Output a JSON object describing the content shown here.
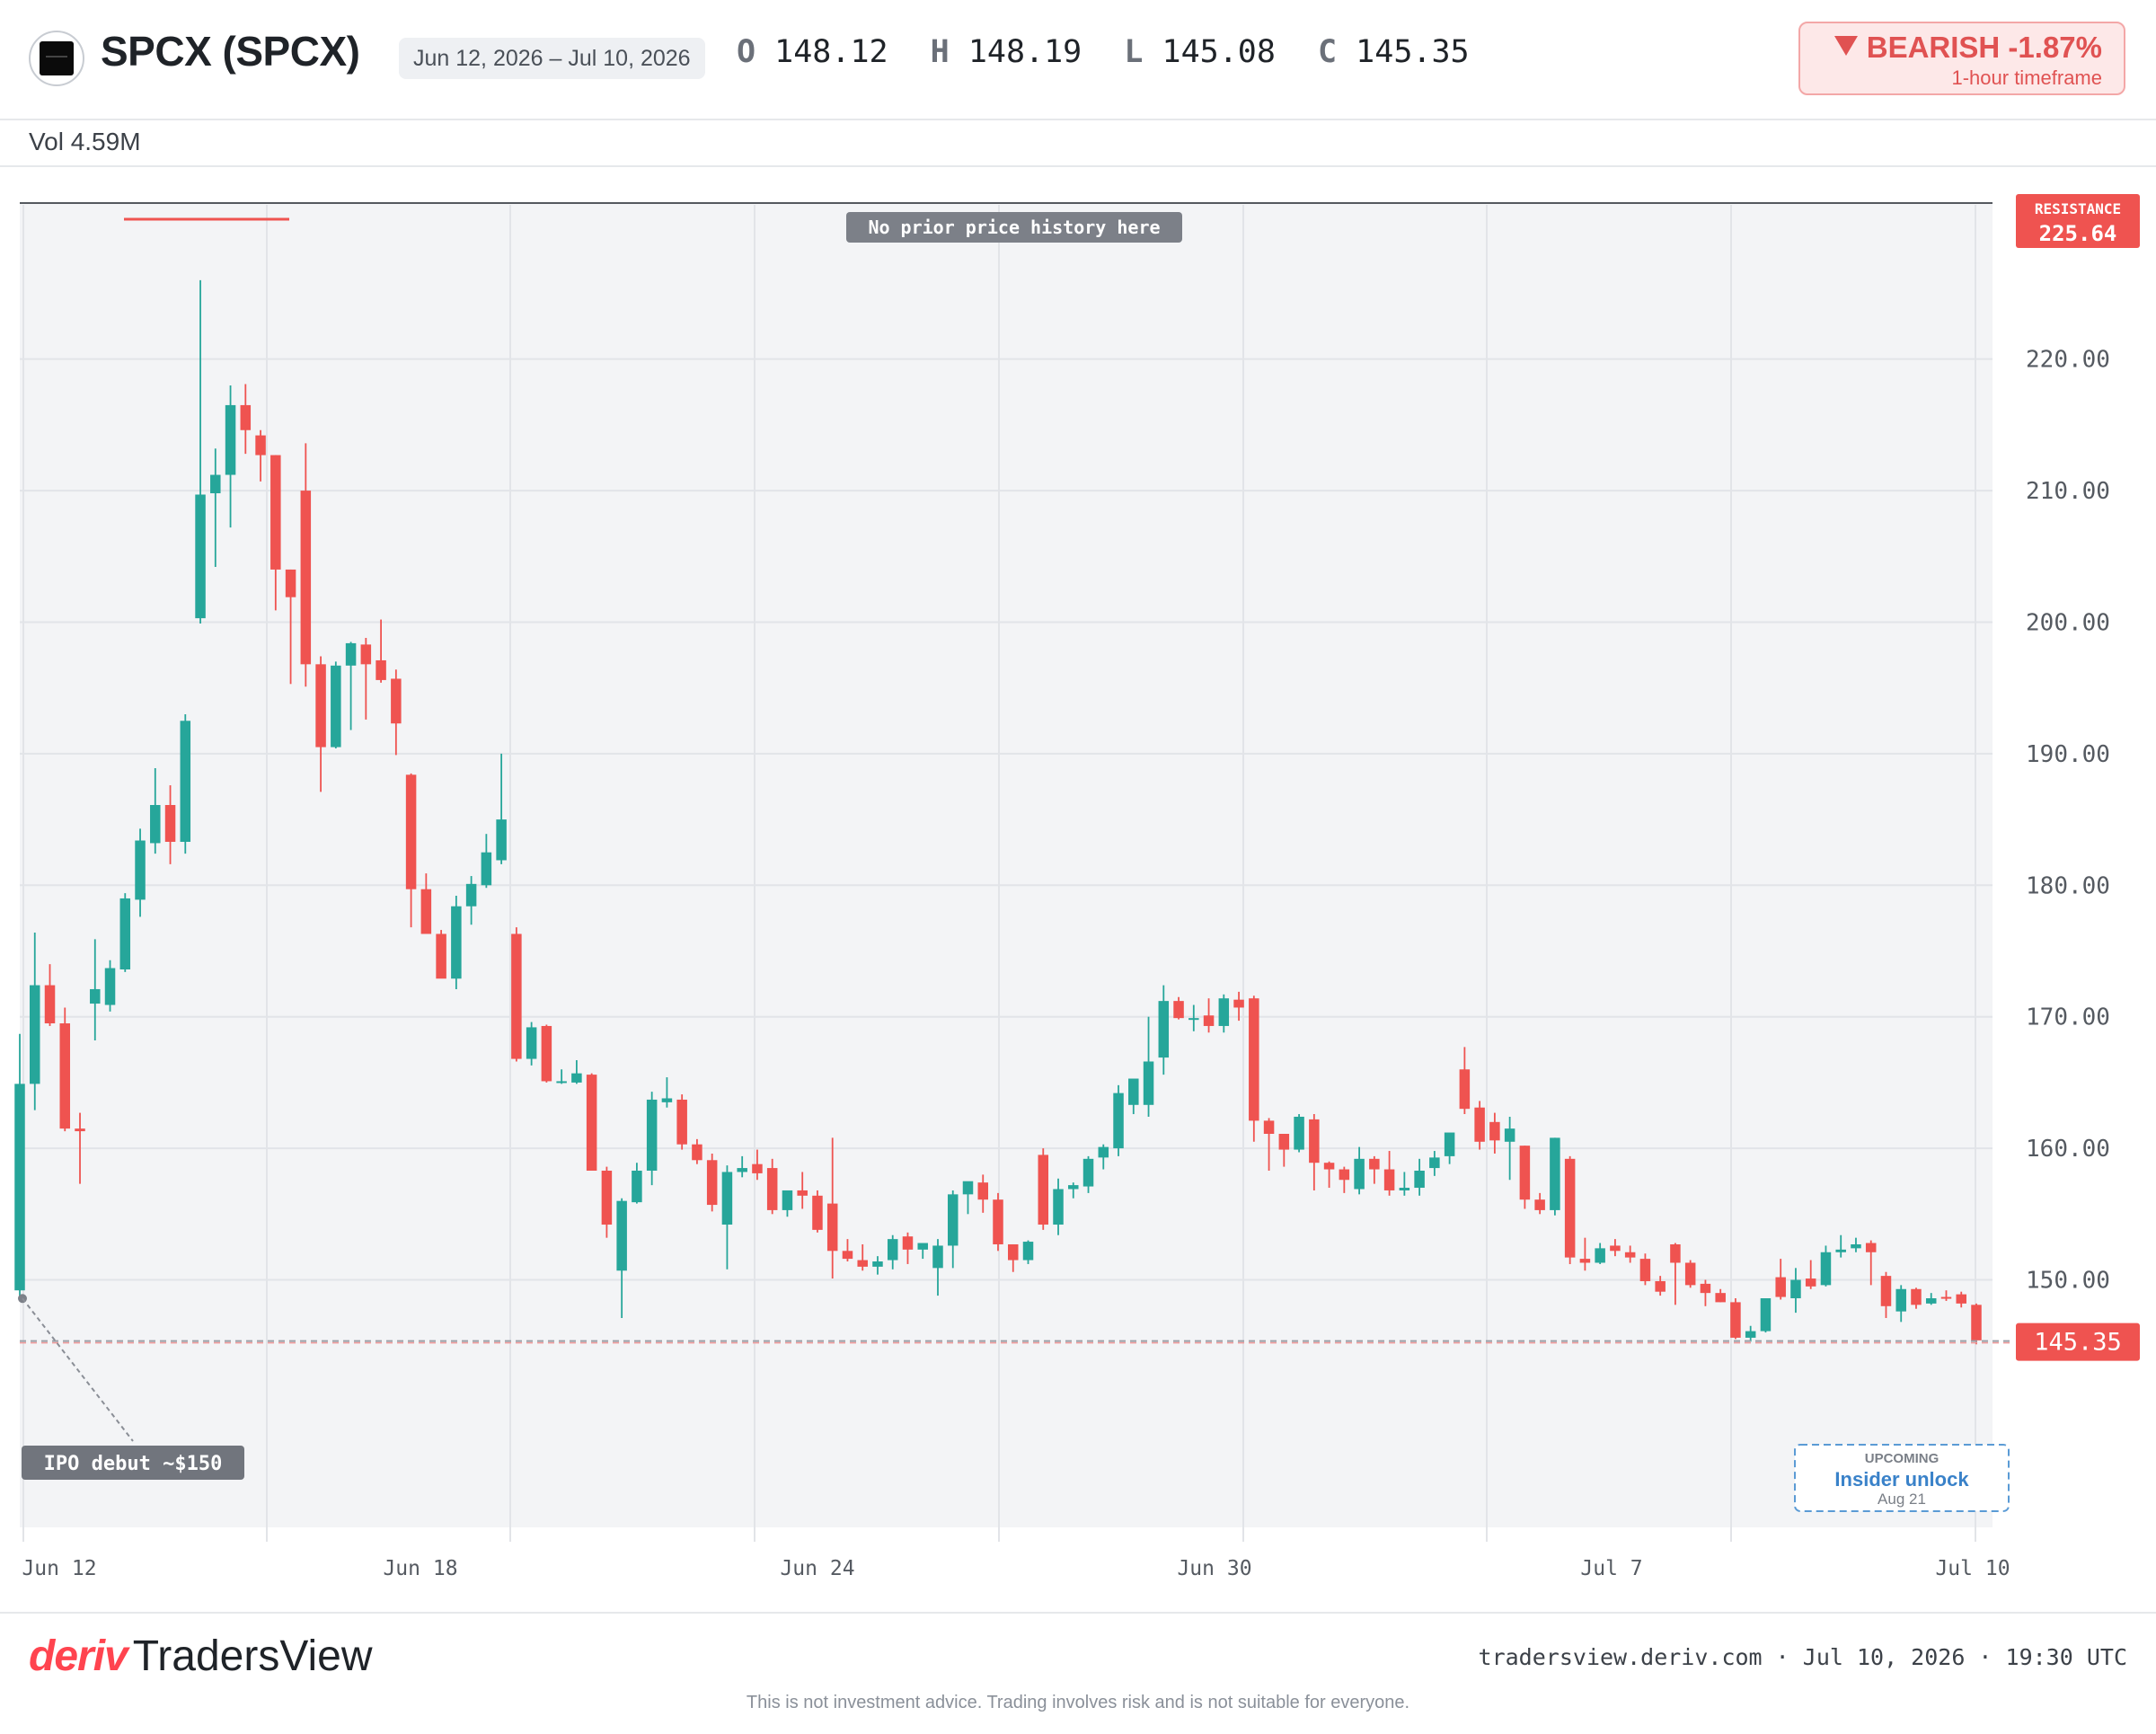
{
  "header": {
    "symbol": "SPCX (SPCX)",
    "date_range": "Jun 12, 2026 – Jul 10, 2026",
    "ohlc": {
      "o_label": "O",
      "o_value": "148.12",
      "h_label": "H",
      "h_value": "148.19",
      "l_label": "L",
      "l_value": "145.08",
      "c_label": "C",
      "c_value": "145.35"
    },
    "volume": "Vol 4.59M",
    "badge": {
      "label": "BEARISH -1.87%",
      "sub": "1-hour timeframe"
    }
  },
  "colors": {
    "up": "#26a69a",
    "down": "#ef5350",
    "badge_bg": "#fde8e8"
  },
  "annotations": {
    "no_history": "No prior price history here",
    "ipo": "IPO debut ~$150",
    "resistance_label": "RESISTANCE",
    "resistance_value": "225.64",
    "last_price": "145.35",
    "upcoming_label": "UPCOMING",
    "upcoming_event": "Insider unlock",
    "upcoming_date": "Aug 21"
  },
  "chart_data": {
    "type": "candlestick",
    "ylim": [
      130.5,
      232
    ],
    "y_ticks": [
      "220.00",
      "210.00",
      "200.00",
      "190.00",
      "180.00",
      "170.00",
      "160.00",
      "150.00"
    ],
    "x_labels": [
      "Jun 12",
      "Jun 18",
      "Jun 24",
      "Jun 30",
      "Jul 7",
      "Jul 10"
    ],
    "resistance": 225.64,
    "last": 145.35,
    "ipo_price": 149.2,
    "candles": [
      {
        "o": 149.2,
        "h": 168.7,
        "l": 148.6,
        "c": 164.9
      },
      {
        "o": 164.9,
        "h": 176.4,
        "l": 162.9,
        "c": 172.4
      },
      {
        "o": 172.4,
        "h": 174.0,
        "l": 169.3,
        "c": 169.5
      },
      {
        "o": 169.5,
        "h": 170.7,
        "l": 161.3,
        "c": 161.5
      },
      {
        "o": 161.5,
        "h": 162.7,
        "l": 157.3,
        "c": 161.3
      },
      {
        "o": 171.0,
        "h": 175.9,
        "l": 168.2,
        "c": 172.1
      },
      {
        "o": 170.9,
        "h": 174.3,
        "l": 170.4,
        "c": 173.7
      },
      {
        "o": 173.6,
        "h": 179.4,
        "l": 173.4,
        "c": 179.0
      },
      {
        "o": 178.9,
        "h": 184.3,
        "l": 177.6,
        "c": 183.4
      },
      {
        "o": 183.2,
        "h": 188.9,
        "l": 182.4,
        "c": 186.1
      },
      {
        "o": 186.1,
        "h": 187.6,
        "l": 181.6,
        "c": 183.3
      },
      {
        "o": 183.3,
        "h": 193.0,
        "l": 182.4,
        "c": 192.5
      },
      {
        "o": 200.3,
        "h": 226.0,
        "l": 199.9,
        "c": 209.7
      },
      {
        "o": 209.8,
        "h": 213.2,
        "l": 204.2,
        "c": 211.2
      },
      {
        "o": 211.2,
        "h": 218.0,
        "l": 207.2,
        "c": 216.5
      },
      {
        "o": 216.5,
        "h": 218.1,
        "l": 212.8,
        "c": 214.6
      },
      {
        "o": 214.2,
        "h": 214.6,
        "l": 210.7,
        "c": 212.7
      },
      {
        "o": 212.7,
        "h": 212.7,
        "l": 200.9,
        "c": 204.0
      },
      {
        "o": 204.0,
        "h": 204.0,
        "l": 195.3,
        "c": 201.9
      },
      {
        "o": 210.0,
        "h": 213.6,
        "l": 195.1,
        "c": 196.8
      },
      {
        "o": 196.8,
        "h": 197.4,
        "l": 187.1,
        "c": 190.5
      },
      {
        "o": 190.5,
        "h": 197.0,
        "l": 190.4,
        "c": 196.7
      },
      {
        "o": 196.7,
        "h": 198.5,
        "l": 191.8,
        "c": 198.4
      },
      {
        "o": 198.3,
        "h": 198.8,
        "l": 192.6,
        "c": 196.8
      },
      {
        "o": 197.1,
        "h": 200.2,
        "l": 195.4,
        "c": 195.6
      },
      {
        "o": 195.7,
        "h": 196.4,
        "l": 189.9,
        "c": 192.3
      },
      {
        "o": 188.4,
        "h": 188.5,
        "l": 176.8,
        "c": 179.7
      },
      {
        "o": 179.7,
        "h": 180.9,
        "l": 176.6,
        "c": 176.3
      },
      {
        "o": 176.3,
        "h": 176.6,
        "l": 173.0,
        "c": 172.9
      },
      {
        "o": 172.9,
        "h": 179.2,
        "l": 172.1,
        "c": 178.4
      },
      {
        "o": 178.4,
        "h": 180.7,
        "l": 177.0,
        "c": 180.1
      },
      {
        "o": 180.0,
        "h": 183.9,
        "l": 179.8,
        "c": 182.5
      },
      {
        "o": 181.9,
        "h": 190.0,
        "l": 181.6,
        "c": 185.0
      },
      {
        "o": 176.3,
        "h": 176.8,
        "l": 166.6,
        "c": 166.8
      },
      {
        "o": 166.8,
        "h": 169.6,
        "l": 166.3,
        "c": 169.2
      },
      {
        "o": 169.3,
        "h": 169.4,
        "l": 165.0,
        "c": 165.1
      },
      {
        "o": 165.0,
        "h": 166.0,
        "l": 164.9,
        "c": 165.1
      },
      {
        "o": 165.0,
        "h": 166.7,
        "l": 164.9,
        "c": 165.7
      },
      {
        "o": 165.6,
        "h": 165.7,
        "l": 158.3,
        "c": 158.3
      },
      {
        "o": 158.3,
        "h": 158.6,
        "l": 153.2,
        "c": 154.2
      },
      {
        "o": 150.7,
        "h": 156.2,
        "l": 147.1,
        "c": 156.0
      },
      {
        "o": 155.9,
        "h": 158.9,
        "l": 155.8,
        "c": 158.3
      },
      {
        "o": 158.3,
        "h": 164.3,
        "l": 157.2,
        "c": 163.7
      },
      {
        "o": 163.5,
        "h": 165.4,
        "l": 163.1,
        "c": 163.8
      },
      {
        "o": 163.7,
        "h": 164.1,
        "l": 159.9,
        "c": 160.3
      },
      {
        "o": 160.3,
        "h": 160.7,
        "l": 158.8,
        "c": 159.1
      },
      {
        "o": 159.1,
        "h": 159.6,
        "l": 155.2,
        "c": 155.7
      },
      {
        "o": 154.2,
        "h": 158.7,
        "l": 150.8,
        "c": 158.2
      },
      {
        "o": 158.2,
        "h": 159.4,
        "l": 157.8,
        "c": 158.5
      },
      {
        "o": 158.8,
        "h": 159.9,
        "l": 157.6,
        "c": 158.1
      },
      {
        "o": 158.5,
        "h": 159.2,
        "l": 155.0,
        "c": 155.3
      },
      {
        "o": 155.3,
        "h": 156.4,
        "l": 154.8,
        "c": 156.8
      },
      {
        "o": 156.8,
        "h": 158.2,
        "l": 155.4,
        "c": 156.4
      },
      {
        "o": 156.4,
        "h": 156.8,
        "l": 153.6,
        "c": 153.8
      },
      {
        "o": 155.8,
        "h": 160.8,
        "l": 150.1,
        "c": 152.2
      },
      {
        "o": 152.2,
        "h": 153.1,
        "l": 151.4,
        "c": 151.6
      },
      {
        "o": 151.5,
        "h": 152.7,
        "l": 150.7,
        "c": 151.0
      },
      {
        "o": 151.0,
        "h": 151.8,
        "l": 150.4,
        "c": 151.4
      },
      {
        "o": 151.5,
        "h": 153.4,
        "l": 150.8,
        "c": 153.1
      },
      {
        "o": 153.3,
        "h": 153.6,
        "l": 151.2,
        "c": 152.3
      },
      {
        "o": 152.3,
        "h": 152.7,
        "l": 151.6,
        "c": 152.8
      },
      {
        "o": 150.9,
        "h": 153.1,
        "l": 148.8,
        "c": 152.6
      },
      {
        "o": 152.6,
        "h": 156.8,
        "l": 150.9,
        "c": 156.5
      },
      {
        "o": 156.5,
        "h": 157.3,
        "l": 155.0,
        "c": 157.5
      },
      {
        "o": 157.4,
        "h": 158.0,
        "l": 155.1,
        "c": 156.1
      },
      {
        "o": 156.1,
        "h": 156.6,
        "l": 152.2,
        "c": 152.7
      },
      {
        "o": 152.7,
        "h": 152.7,
        "l": 150.6,
        "c": 151.5
      },
      {
        "o": 151.5,
        "h": 153.0,
        "l": 151.2,
        "c": 152.9
      },
      {
        "o": 159.5,
        "h": 160.0,
        "l": 153.8,
        "c": 154.2
      },
      {
        "o": 154.2,
        "h": 157.7,
        "l": 153.4,
        "c": 156.9
      },
      {
        "o": 156.9,
        "h": 157.4,
        "l": 156.2,
        "c": 157.2
      },
      {
        "o": 157.1,
        "h": 159.4,
        "l": 156.6,
        "c": 159.2
      },
      {
        "o": 159.3,
        "h": 160.3,
        "l": 158.4,
        "c": 160.1
      },
      {
        "o": 160.0,
        "h": 164.8,
        "l": 159.4,
        "c": 164.2
      },
      {
        "o": 163.3,
        "h": 165.0,
        "l": 162.6,
        "c": 165.3
      },
      {
        "o": 163.3,
        "h": 170.0,
        "l": 162.4,
        "c": 166.6
      },
      {
        "o": 166.9,
        "h": 172.4,
        "l": 165.6,
        "c": 171.2
      },
      {
        "o": 171.2,
        "h": 171.5,
        "l": 169.8,
        "c": 169.9
      },
      {
        "o": 169.9,
        "h": 170.9,
        "l": 168.9,
        "c": 169.9
      },
      {
        "o": 170.1,
        "h": 171.4,
        "l": 168.8,
        "c": 169.3
      },
      {
        "o": 169.3,
        "h": 171.7,
        "l": 168.8,
        "c": 171.4
      },
      {
        "o": 171.3,
        "h": 171.9,
        "l": 169.7,
        "c": 170.7
      },
      {
        "o": 171.4,
        "h": 171.6,
        "l": 160.5,
        "c": 162.1
      },
      {
        "o": 162.1,
        "h": 162.3,
        "l": 158.3,
        "c": 161.1
      },
      {
        "o": 161.1,
        "h": 161.1,
        "l": 158.6,
        "c": 159.9
      },
      {
        "o": 159.9,
        "h": 162.6,
        "l": 159.7,
        "c": 162.4
      },
      {
        "o": 162.2,
        "h": 162.6,
        "l": 156.8,
        "c": 158.9
      },
      {
        "o": 158.9,
        "h": 159.0,
        "l": 157.0,
        "c": 158.4
      },
      {
        "o": 158.4,
        "h": 158.6,
        "l": 156.6,
        "c": 157.6
      },
      {
        "o": 156.9,
        "h": 160.1,
        "l": 156.5,
        "c": 159.2
      },
      {
        "o": 159.2,
        "h": 159.4,
        "l": 157.3,
        "c": 158.4
      },
      {
        "o": 158.4,
        "h": 159.8,
        "l": 156.4,
        "c": 156.8
      },
      {
        "o": 156.8,
        "h": 158.2,
        "l": 156.4,
        "c": 157.0
      },
      {
        "o": 157.0,
        "h": 159.2,
        "l": 156.4,
        "c": 158.3
      },
      {
        "o": 158.5,
        "h": 159.8,
        "l": 157.9,
        "c": 159.3
      },
      {
        "o": 159.4,
        "h": 161.1,
        "l": 158.8,
        "c": 161.2
      },
      {
        "o": 166.0,
        "h": 167.7,
        "l": 162.6,
        "c": 163.0
      },
      {
        "o": 163.1,
        "h": 163.6,
        "l": 159.9,
        "c": 160.5
      },
      {
        "o": 162.0,
        "h": 162.7,
        "l": 159.6,
        "c": 160.6
      },
      {
        "o": 160.5,
        "h": 162.4,
        "l": 157.6,
        "c": 161.5
      },
      {
        "o": 160.2,
        "h": 160.2,
        "l": 155.4,
        "c": 156.1
      },
      {
        "o": 156.1,
        "h": 156.6,
        "l": 155.0,
        "c": 155.3
      },
      {
        "o": 155.3,
        "h": 160.8,
        "l": 154.9,
        "c": 160.8
      },
      {
        "o": 159.2,
        "h": 159.4,
        "l": 151.2,
        "c": 151.7
      },
      {
        "o": 151.6,
        "h": 153.2,
        "l": 150.7,
        "c": 151.3
      },
      {
        "o": 151.3,
        "h": 152.8,
        "l": 151.2,
        "c": 152.4
      },
      {
        "o": 152.6,
        "h": 153.1,
        "l": 151.8,
        "c": 152.2
      },
      {
        "o": 152.1,
        "h": 152.6,
        "l": 151.3,
        "c": 151.7
      },
      {
        "o": 151.6,
        "h": 152.0,
        "l": 149.6,
        "c": 149.9
      },
      {
        "o": 149.9,
        "h": 150.3,
        "l": 148.8,
        "c": 149.1
      },
      {
        "o": 152.7,
        "h": 152.8,
        "l": 148.1,
        "c": 151.3
      },
      {
        "o": 151.3,
        "h": 151.5,
        "l": 149.4,
        "c": 149.6
      },
      {
        "o": 149.7,
        "h": 150.0,
        "l": 148.0,
        "c": 149.0
      },
      {
        "o": 149.0,
        "h": 149.3,
        "l": 148.3,
        "c": 148.3
      },
      {
        "o": 148.3,
        "h": 148.6,
        "l": 145.5,
        "c": 145.6
      },
      {
        "o": 145.6,
        "h": 146.5,
        "l": 145.3,
        "c": 146.1
      },
      {
        "o": 146.1,
        "h": 148.6,
        "l": 146.0,
        "c": 148.6
      },
      {
        "o": 150.2,
        "h": 151.6,
        "l": 148.5,
        "c": 148.7
      },
      {
        "o": 148.6,
        "h": 150.9,
        "l": 147.5,
        "c": 150.0
      },
      {
        "o": 150.1,
        "h": 151.5,
        "l": 149.3,
        "c": 149.5
      },
      {
        "o": 149.6,
        "h": 152.6,
        "l": 149.5,
        "c": 152.1
      },
      {
        "o": 152.1,
        "h": 153.4,
        "l": 151.7,
        "c": 152.3
      },
      {
        "o": 152.4,
        "h": 153.2,
        "l": 152.1,
        "c": 152.7
      },
      {
        "o": 152.8,
        "h": 153.0,
        "l": 149.6,
        "c": 152.1
      },
      {
        "o": 150.3,
        "h": 150.6,
        "l": 147.1,
        "c": 148.0
      },
      {
        "o": 147.6,
        "h": 149.6,
        "l": 146.8,
        "c": 149.3
      },
      {
        "o": 149.3,
        "h": 149.4,
        "l": 147.8,
        "c": 148.1
      },
      {
        "o": 148.2,
        "h": 149.0,
        "l": 148.1,
        "c": 148.6
      },
      {
        "o": 148.7,
        "h": 149.2,
        "l": 148.4,
        "c": 148.6
      },
      {
        "o": 148.9,
        "h": 149.1,
        "l": 147.9,
        "c": 148.2
      },
      {
        "o": 148.1,
        "h": 148.2,
        "l": 145.1,
        "c": 145.4
      }
    ]
  },
  "footer": {
    "brand_a": "deriv",
    "brand_b": "TradersView",
    "site": "tradersview.deriv.com · Jul 10, 2026 · 19:30 UTC",
    "disclaimer": "This is not investment advice. Trading involves risk and is not suitable for everyone."
  }
}
